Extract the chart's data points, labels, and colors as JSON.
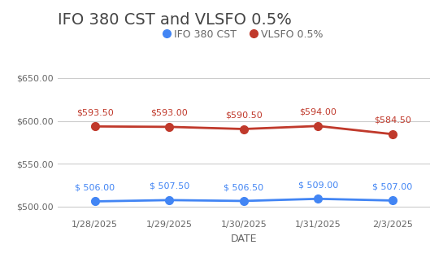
{
  "title": "IFO 380 CST and VLSFO 0.5%",
  "xlabel": "DATE",
  "dates": [
    "1/28/2025",
    "1/29/2025",
    "1/30/2025",
    "1/31/2025",
    "2/3/2025"
  ],
  "ifo_values": [
    506.0,
    507.5,
    506.5,
    509.0,
    507.0
  ],
  "vlsfo_values": [
    593.5,
    593.0,
    590.5,
    594.0,
    584.5
  ],
  "ifo_color": "#4285F4",
  "vlsfo_color": "#C0392B",
  "ifo_label": "IFO 380 CST",
  "vlsfo_label": "VLSFO 0.5%",
  "ylim": [
    488,
    662
  ],
  "yticks": [
    500.0,
    550.0,
    600.0,
    650.0
  ],
  "background_color": "#ffffff",
  "grid_color": "#cccccc",
  "title_fontsize": 14,
  "axis_label_fontsize": 9,
  "tick_fontsize": 8,
  "annotation_fontsize": 8,
  "legend_fontsize": 9,
  "marker_size": 7,
  "line_width": 2
}
